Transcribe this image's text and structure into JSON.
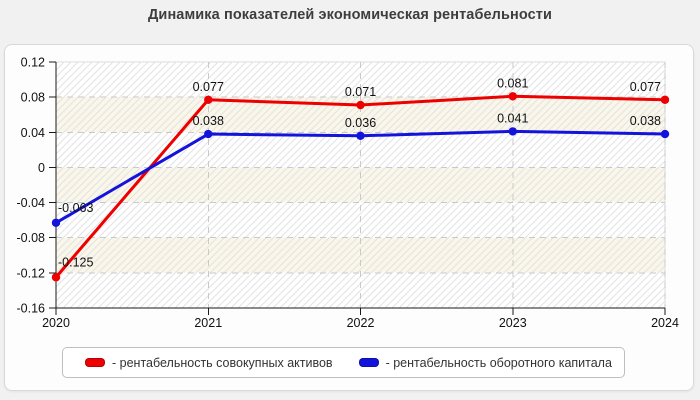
{
  "title": "Динамика показателей экономическая рентабельности",
  "chart_data": {
    "type": "line",
    "title": "Динамика показателей экономическая рентабельности",
    "xlabel": "",
    "ylabel": "",
    "x_categories": [
      "2020",
      "2021",
      "2022",
      "2023",
      "2024"
    ],
    "y_ticks": [
      "0.12",
      "0.08",
      "0.04",
      "0",
      "-0.04",
      "-0.08",
      "-0.12",
      "-0.16"
    ],
    "ylim": [
      -0.16,
      0.12
    ],
    "grid": true,
    "legend_position": "bottom",
    "series": [
      {
        "name": "рентабельность совокупных активов",
        "legend_label": "- рентабельность совокупных активов",
        "color": "#ee0000",
        "values": [
          -0.125,
          0.077,
          0.071,
          0.081,
          0.077
        ],
        "point_labels": [
          "-0.125",
          "0.077",
          "0.071",
          "0.081",
          "0.077"
        ]
      },
      {
        "name": "рентабельность оборотного капитала",
        "legend_label": "- рентабельность оборотного капитала",
        "color": "#1313dc",
        "values": [
          -0.063,
          0.038,
          0.036,
          0.041,
          0.038
        ],
        "point_labels": [
          "-0.063",
          "0.038",
          "0.036",
          "0.041",
          "0.038"
        ]
      }
    ]
  },
  "colors": {
    "page_background": "#f1f1f1",
    "panel_background": "#fdfdfd",
    "panel_border": "#d9d9d9",
    "plot_band_light": "#ffffff",
    "plot_band_cream": "#faf7e9",
    "hatch_line": "#e1e2e6",
    "gridline": "#c9c9c9",
    "plot_border": "#dddddd",
    "axis": "#1a1a1a",
    "tick_label": "#111111",
    "data_label": "#111111",
    "title_text": "#3d3d3d",
    "legend_border": "#bfbfbf",
    "legend_text": "#333333"
  }
}
